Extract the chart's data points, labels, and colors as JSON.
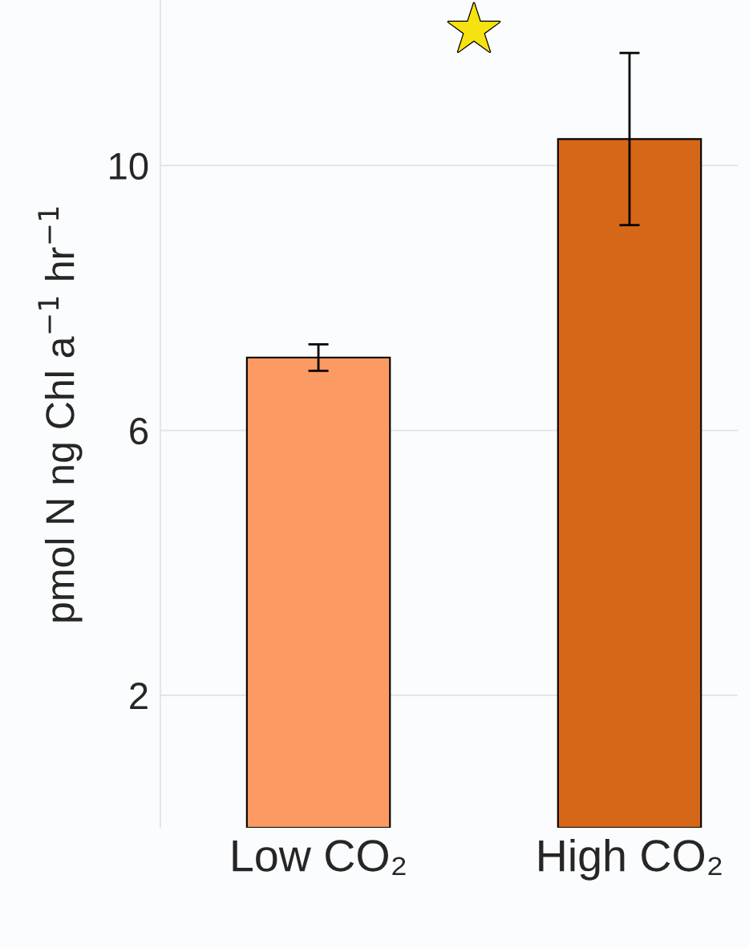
{
  "chart_data": {
    "type": "bar",
    "categories": [
      "Low CO₂",
      "High CO₂"
    ],
    "values": [
      7.1,
      10.4
    ],
    "colors": [
      "#fb9a62",
      "#d76718"
    ],
    "errors": [
      [
        6.9,
        7.3
      ],
      [
        9.1,
        11.7
      ]
    ],
    "ylabel": "pmol N ng Chl a$^{−1}$ hr$^{−1}$",
    "ylim": [
      0,
      12.5
    ],
    "yticks": [
      2,
      6,
      10
    ],
    "grid": "y",
    "annotations": [
      "★"
    ]
  }
}
